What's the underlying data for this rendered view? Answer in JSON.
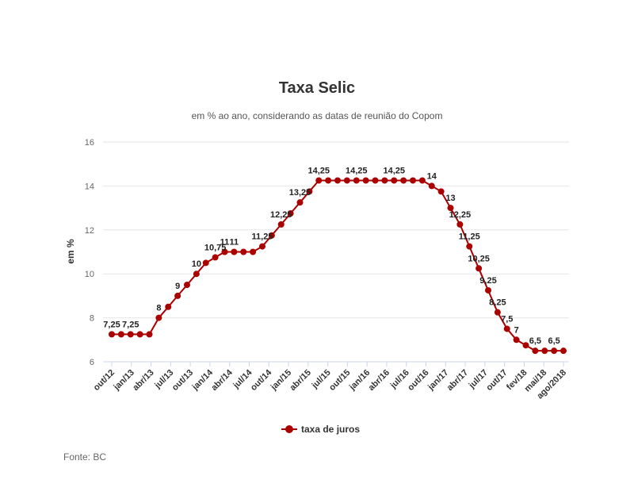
{
  "colors": {
    "series": "#aa0000",
    "grid": "#e6e6e6",
    "axis": "#ccd6eb"
  },
  "source": "Fonte: BC",
  "chart_data": {
    "type": "line",
    "title": "Taxa Selic",
    "subtitle": "em % ao ano, considerando as datas de reunião do Copom",
    "xlabel": "",
    "ylabel": "em %",
    "ylim": [
      6,
      16
    ],
    "yticks": [
      6,
      8,
      10,
      12,
      14,
      16
    ],
    "grid": true,
    "legend_position": "bottom",
    "x_tick_labels": [
      "out/12",
      "jan/13",
      "abr/13",
      "jul/13",
      "out/13",
      "jan/14",
      "abr/14",
      "jul/14",
      "out/14",
      "jan/15",
      "abr/15",
      "jul/15",
      "out/15",
      "jan/16",
      "abr/16",
      "jul/16",
      "out/16",
      "jan/17",
      "abr/17",
      "jul/17",
      "out/17",
      "fev/18",
      "mai/18",
      "ago/2018"
    ],
    "series": [
      {
        "name": "taxa de juros",
        "values": [
          7.25,
          7.25,
          7.25,
          7.25,
          7.25,
          8,
          8.5,
          9,
          9.5,
          10,
          10.5,
          10.75,
          11,
          11,
          11,
          11,
          11.25,
          11.75,
          12.25,
          12.75,
          13.25,
          13.75,
          14.25,
          14.25,
          14.25,
          14.25,
          14.25,
          14.25,
          14.25,
          14.25,
          14.25,
          14.25,
          14.25,
          14.25,
          14,
          13.75,
          13,
          12.25,
          11.25,
          10.25,
          9.25,
          8.25,
          7.5,
          7,
          6.75,
          6.5,
          6.5,
          6.5,
          6.5
        ],
        "data_labels": [
          "7,25",
          "",
          "7,25",
          "",
          "",
          "8",
          "",
          "9",
          "",
          "10",
          "",
          "10,75",
          "11",
          "11",
          "",
          "",
          "11,25",
          "",
          "12,25",
          "",
          "13,25",
          "",
          "14,25",
          "",
          "",
          "",
          "14,25",
          "",
          "",
          "",
          "14,25",
          "",
          "",
          "",
          "14",
          "",
          "13",
          "12,25",
          "11,25",
          "10,25",
          "9,25",
          "8,25",
          "7,5",
          "7",
          "",
          "6,5",
          "",
          "6,5",
          ""
        ]
      }
    ]
  }
}
